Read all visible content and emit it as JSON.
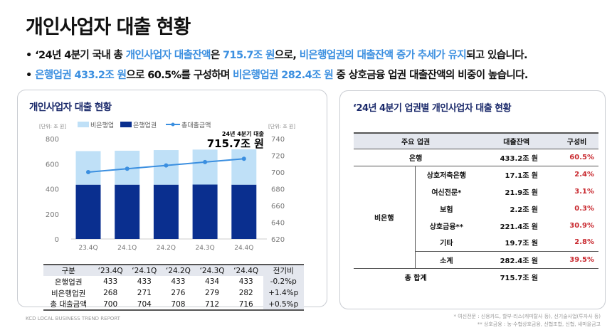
{
  "title": "개인사업자 대출 현황",
  "bullets": [
    {
      "p1": "‘24년 4분기 국내 총 ",
      "h1": "개인사업자 대출잔액",
      "p2": "은 ",
      "h2": "715.7조 원",
      "p3": "으로, ",
      "h3": "비은행업권의 대출잔액 증가 추세가 유지",
      "p4": "되고 있습니다."
    },
    {
      "h1": "은행업권 433.2조 원",
      "p2": "으로 60.5%를 구성하며 ",
      "h2": "비은행업권 282.4조 원",
      "p3": " 중 상호금융 업권 대출잔액의 비중이 높습니다."
    }
  ],
  "left_panel": {
    "title": "개인사업자 대출 현황"
  },
  "chart_data": {
    "type": "bar",
    "categories": [
      "23.4Q",
      "24.1Q",
      "24.2Q",
      "24.3Q",
      "24.4Q"
    ],
    "series": [
      {
        "name": "은행업권",
        "values": [
          433,
          433,
          433,
          434,
          433
        ],
        "color": "#0a2f8f",
        "axis": "left"
      },
      {
        "name": "비은행업",
        "values": [
          268,
          271,
          276,
          279,
          282
        ],
        "color": "#bfe0f7",
        "axis": "left"
      },
      {
        "name": "총대출금액",
        "type": "line",
        "values": [
          700,
          704,
          708,
          712,
          716
        ],
        "color": "#3b8fe0",
        "axis": "right"
      }
    ],
    "left_unit": "[단위: 조 원]",
    "right_unit": "[단위: 조 원]",
    "ylim": [
      0,
      800
    ],
    "yticks": [
      0,
      200,
      400,
      600,
      800
    ],
    "y2lim": [
      620,
      740
    ],
    "y2ticks": [
      620,
      640,
      660,
      680,
      700,
      720,
      740
    ],
    "annotation": {
      "label": "24년 4분기 대출",
      "value": "715.7조 원"
    },
    "legend": "top"
  },
  "summary_table": {
    "headers": [
      "구분",
      "‘23.4Q",
      "‘24.1Q",
      "‘24.2Q",
      "‘24.3Q",
      "‘24.4Q",
      "전기비"
    ],
    "rows": [
      [
        "은행업권",
        "433",
        "433",
        "433",
        "434",
        "433",
        "-0.2%p"
      ],
      [
        "비은행업권",
        "268",
        "271",
        "276",
        "279",
        "282",
        "+1.4%p"
      ],
      [
        "총 대출금액",
        "700",
        "704",
        "708",
        "712",
        "716",
        "+0.5%p"
      ]
    ]
  },
  "right_panel": {
    "title": "‘24년 4분기 업권별 개인사업자 대출 현황",
    "headers": [
      "주요 업권",
      "대출잔액",
      "구성비"
    ],
    "bank": {
      "label": "은행",
      "amount": "433.2조 원",
      "share": "60.5%"
    },
    "nonbank_label": "비은행",
    "nonbank": [
      {
        "label": "상호저축은행",
        "amount": "17.1조 원",
        "share": "2.4%"
      },
      {
        "label": "여신전문*",
        "amount": "21.9조 원",
        "share": "3.1%"
      },
      {
        "label": "보험",
        "amount": "2.2조 원",
        "share": "0.3%"
      },
      {
        "label": "상호금융**",
        "amount": "221.4조 원",
        "share": "30.9%"
      },
      {
        "label": "기타",
        "amount": "19.7조 원",
        "share": "2.8%"
      }
    ],
    "subtotal": {
      "label": "소계",
      "amount": "282.4조 원",
      "share": "39.5%"
    },
    "total": {
      "label": "총 합계",
      "amount": "715.7조 원"
    }
  },
  "footer": {
    "report": "KCD LOCAL BUSINESS TREND REPORT",
    "note1": "* 여신전문 : 신용카드, 할부·리스(캐피탈사 등), 신기술사업(투자사 등)",
    "note2": "** 상호금융 : 농·수협상호금융, 신협조합, 신협, 새마을금고"
  }
}
